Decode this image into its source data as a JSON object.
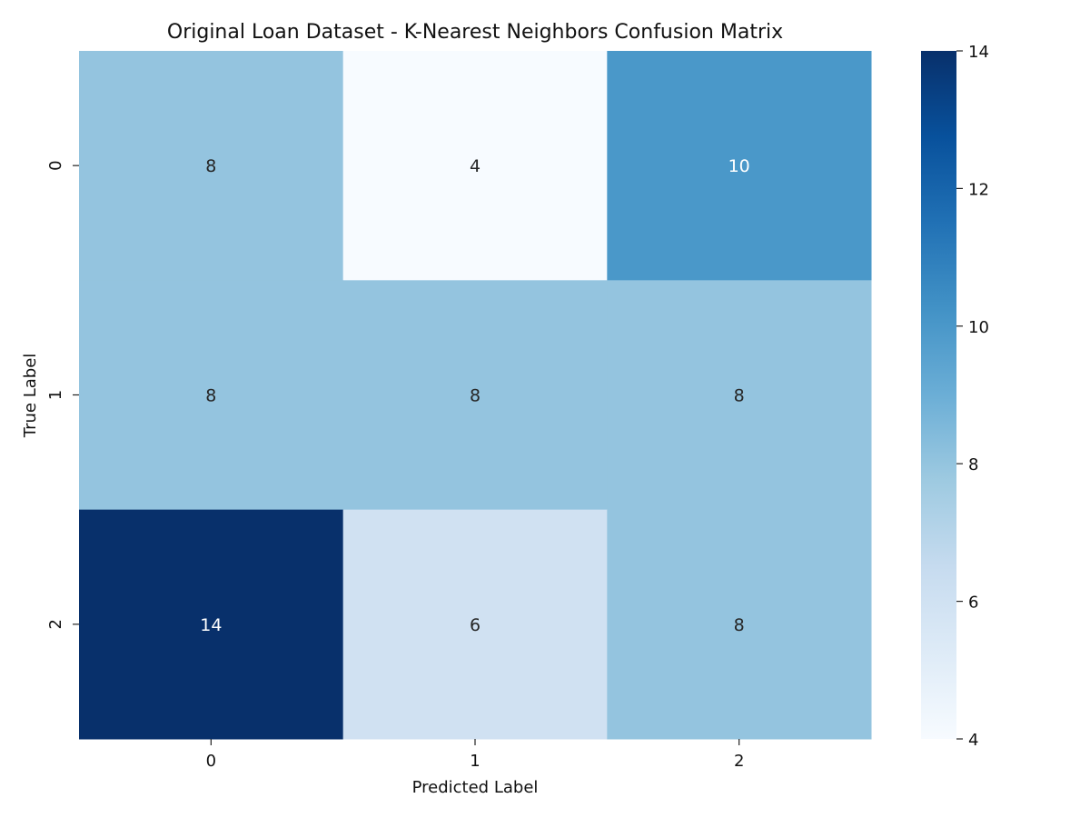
{
  "chart_data": {
    "type": "heatmap",
    "title": "Original Loan Dataset - K-Nearest Neighbors Confusion Matrix",
    "xlabel": "Predicted Label",
    "ylabel": "True Label",
    "x_categories": [
      "0",
      "1",
      "2"
    ],
    "y_categories": [
      "0",
      "1",
      "2"
    ],
    "matrix": [
      [
        8,
        4,
        10
      ],
      [
        8,
        8,
        8
      ],
      [
        14,
        6,
        8
      ]
    ],
    "colorbar": {
      "range": [
        4,
        14
      ],
      "ticks": [
        4,
        6,
        8,
        10,
        12,
        14
      ],
      "colormap": "Blues"
    },
    "colors": {
      "low": "#f7fbff",
      "high": "#08306b",
      "text_dark": "#262626",
      "text_light": "#ffffff"
    }
  }
}
